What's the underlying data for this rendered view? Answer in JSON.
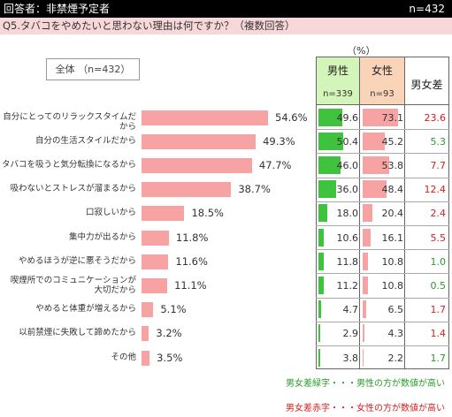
{
  "header": {
    "respondent": "回答者：非禁煙予定者",
    "n": "n=432"
  },
  "question": "Q5.タバコをやめたいと思わない理由は何ですか？（複数回答）",
  "unit": "（%）",
  "overall_label": "全体 （n=432）",
  "table_headers": {
    "male": "男性",
    "male_n": "n=339",
    "female": "女性",
    "female_n": "n=93",
    "diff": "男女差"
  },
  "notes": {
    "green": "男女差緑字・・・男性の方が数値が高い",
    "red": "男女差赤字・・・女性の方が数値が高い"
  },
  "colors": {
    "overall_bar": "#f7a3a3",
    "male_bar": "#3fc33f",
    "female_bar": "#f7a3a3",
    "diff_green": "#2a9a2a",
    "diff_red": "#d62020"
  },
  "chart_data": {
    "type": "bar",
    "categories": [
      "自分にとってのリラックスタイムだから",
      "自分の生活スタイルだから",
      "タバコを吸うと気分転換になるから",
      "吸わないとストレスが溜まるから",
      "口寂しいから",
      "集中力が出るから",
      "やめるほうが逆に悪そうだから",
      "喫煙所でのコミュニケーションが大切だから",
      "やめると体重が増えるから",
      "以前禁煙に失敗して諦めたから",
      "その他"
    ],
    "series": [
      {
        "name": "全体",
        "values": [
          54.6,
          49.3,
          47.7,
          38.7,
          18.5,
          11.8,
          11.6,
          11.1,
          5.1,
          3.2,
          3.5
        ]
      },
      {
        "name": "男性",
        "values": [
          49.6,
          50.4,
          46.0,
          36.0,
          18.0,
          10.6,
          11.8,
          11.2,
          4.7,
          2.9,
          3.8
        ]
      },
      {
        "name": "女性",
        "values": [
          73.1,
          45.2,
          53.8,
          48.4,
          20.4,
          16.1,
          10.8,
          10.8,
          6.5,
          4.3,
          2.2
        ]
      },
      {
        "name": "男女差",
        "values": [
          23.6,
          5.3,
          7.7,
          12.4,
          2.4,
          5.5,
          1.0,
          0.5,
          1.7,
          1.4,
          1.7
        ]
      }
    ],
    "diff_color": [
      "red",
      "green",
      "red",
      "red",
      "red",
      "red",
      "green",
      "green",
      "red",
      "red",
      "green"
    ],
    "overall_labels": [
      "54.6%",
      "49.3%",
      "47.7%",
      "38.7%",
      "18.5%",
      "11.8%",
      "11.6%",
      "11.1%",
      "5.1%",
      "3.2%",
      "3.5%"
    ],
    "male_labels": [
      "49.6",
      "50.4",
      "46.0",
      "36.0",
      "18.0",
      "10.6",
      "11.8",
      "11.2",
      "4.7",
      "2.9",
      "3.8"
    ],
    "female_labels": [
      "73.1",
      "45.2",
      "53.8",
      "48.4",
      "20.4",
      "16.1",
      "10.8",
      "10.8",
      "6.5",
      "4.3",
      "2.2"
    ],
    "diff_labels": [
      "23.6",
      "5.3",
      "7.7",
      "12.4",
      "2.4",
      "5.5",
      "1.0",
      "0.5",
      "1.7",
      "1.4",
      "1.7"
    ]
  }
}
